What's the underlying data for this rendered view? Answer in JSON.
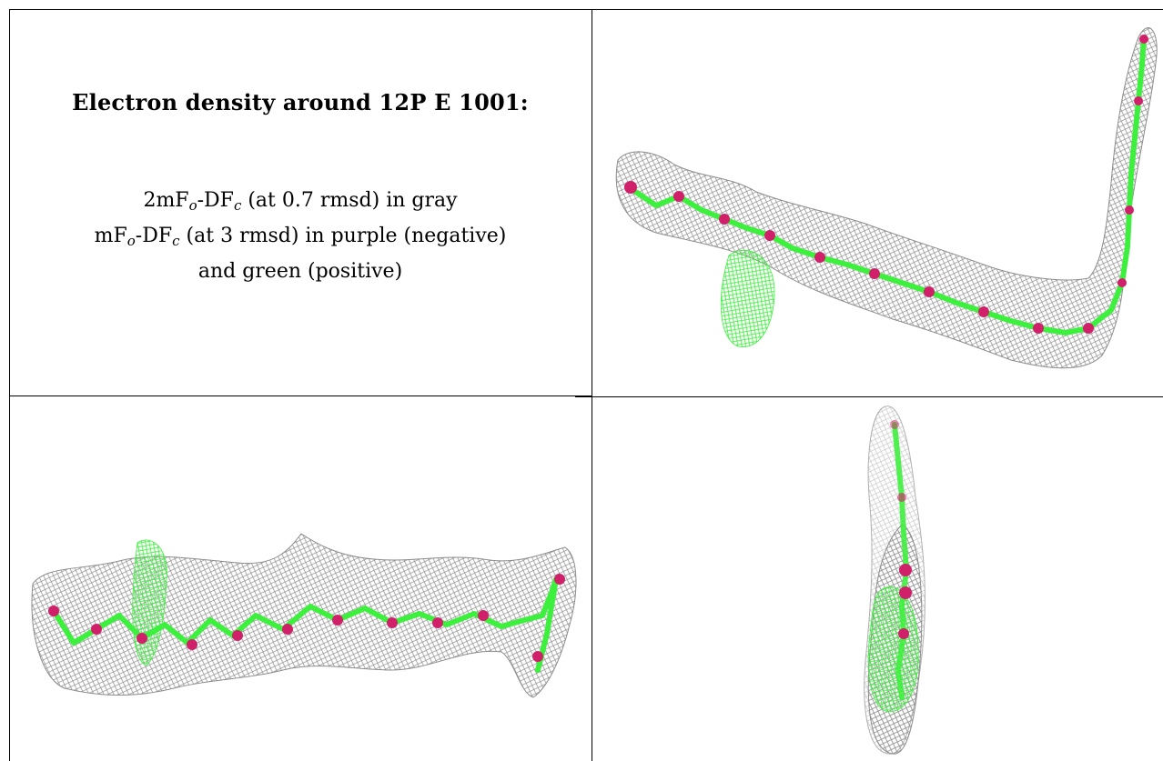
{
  "caption": {
    "title": "Electron density around 12P E 1001:",
    "map_2fo": {
      "prefix": "2mF",
      "sub_o": "o",
      "mid": "-DF",
      "sub_c": "c",
      "suffix": " (at 0.7 rmsd) in gray"
    },
    "map_fo": {
      "prefix": "mF",
      "sub_o": "o",
      "mid": "-DF",
      "sub_c": "c",
      "suffix": " (at 3 rmsd) in purple (negative)"
    },
    "map_fo_cont": "and green (positive)"
  },
  "colors": {
    "mesh_gray": "#8c8c8c",
    "positive_green": "#3ef03e",
    "negative_purple": "#d0206a",
    "rule": "#000000"
  },
  "panels": [
    {
      "name": "view-top-right",
      "description_icon": "density-map-image"
    },
    {
      "name": "view-bottom-left",
      "description_icon": "density-map-image"
    },
    {
      "name": "view-bottom-right",
      "description_icon": "density-map-image"
    }
  ]
}
